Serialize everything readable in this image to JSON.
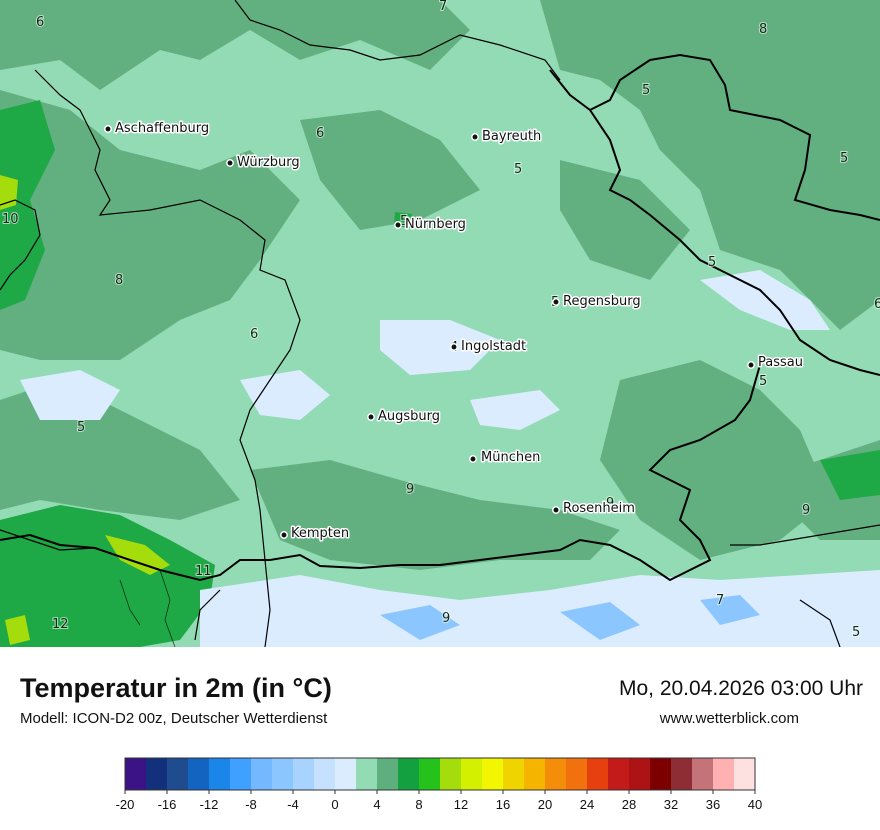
{
  "map": {
    "cities": [
      {
        "name": "Aschaffenburg"
      },
      {
        "name": "Würzburg"
      },
      {
        "name": "Bayreuth"
      },
      {
        "name": "Nürnberg"
      },
      {
        "name": "Regensburg"
      },
      {
        "name": "Ingolstadt"
      },
      {
        "name": "Passau"
      },
      {
        "name": "Augsburg"
      },
      {
        "name": "München"
      },
      {
        "name": "Rosenheim"
      },
      {
        "name": "Kempten"
      }
    ],
    "isotherm_labels": [
      "6",
      "7",
      "8",
      "6",
      "5",
      "5",
      "5",
      "10",
      "8",
      "6",
      "5",
      "5",
      "5",
      "5",
      "5",
      "4",
      "9",
      "9",
      "9",
      "11",
      "12",
      "9",
      "7",
      "5",
      "6"
    ]
  },
  "footer": {
    "title": "Temperatur in 2m (in °C)",
    "model": "Modell: ICON-D2 00z, Deutscher Wetterdienst",
    "datetime": "Mo, 20.04.2026 03:00 Uhr",
    "site": "www.wetterblick.com"
  },
  "legend": {
    "tick_labels": [
      "-20",
      "-16",
      "-12",
      "-8",
      "-4",
      "0",
      "4",
      "8",
      "12",
      "16",
      "20",
      "24",
      "28",
      "32",
      "36",
      "40"
    ],
    "colors": [
      "#3b1386",
      "#13307c",
      "#1f4b8f",
      "#1363c1",
      "#1a86ea",
      "#3fa0ff",
      "#74b9ff",
      "#8cc6ff",
      "#a9d3ff",
      "#c6e1ff",
      "#dcecff",
      "#93dbb4",
      "#5fae7e",
      "#13a13f",
      "#26c21c",
      "#a5dc0c",
      "#d3f000",
      "#f2f600",
      "#f0d400",
      "#f4b400",
      "#f38d0a",
      "#f1710e",
      "#e5400d",
      "#c31a1a",
      "#ad1214",
      "#7d0000",
      "#8e2d34",
      "#c47378",
      "#ffb0b0",
      "#fde0e0"
    ]
  }
}
